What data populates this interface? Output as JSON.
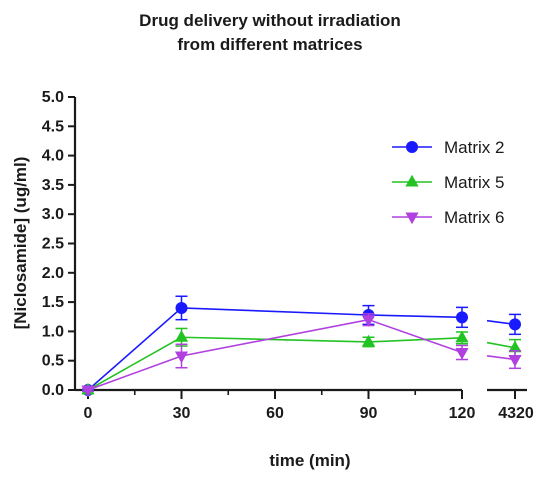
{
  "chart_data": {
    "type": "line",
    "title": [
      "Drug delivery without irradiation",
      "from different matrices"
    ],
    "xlabel": "time (min)",
    "ylabel": "[Niclosamide] (ug/ml)",
    "ylim": [
      0,
      5
    ],
    "y_ticks": [
      "0.0",
      "0.5",
      "1.0",
      "1.5",
      "2.0",
      "2.5",
      "3.0",
      "3.5",
      "4.0",
      "4.5",
      "5.0"
    ],
    "x_segments": [
      {
        "range": [
          0,
          120
        ],
        "ticks": [
          "0",
          "30",
          "60",
          "90",
          "120"
        ]
      },
      {
        "range": [
          4320,
          4320
        ],
        "ticks": [
          "4320"
        ]
      }
    ],
    "grid": false,
    "legend_position": "top-right",
    "x": [
      0,
      30,
      90,
      120,
      4320
    ],
    "series": [
      {
        "name": "Matrix 2",
        "color": "#1a1aff",
        "marker": "circle",
        "values": [
          0.0,
          1.4,
          1.28,
          1.24,
          1.12
        ],
        "errors": [
          0.02,
          0.2,
          0.16,
          0.17,
          0.17
        ]
      },
      {
        "name": "Matrix 5",
        "color": "#22c322",
        "marker": "triangle-up",
        "values": [
          0.0,
          0.9,
          0.82,
          0.89,
          0.72
        ],
        "errors": [
          0.02,
          0.15,
          0.08,
          0.1,
          0.14
        ]
      },
      {
        "name": "Matrix 6",
        "color": "#b040e0",
        "marker": "triangle-down",
        "values": [
          0.0,
          0.58,
          1.2,
          0.64,
          0.52
        ],
        "errors": [
          0.02,
          0.2,
          0.1,
          0.12,
          0.15
        ]
      }
    ]
  }
}
